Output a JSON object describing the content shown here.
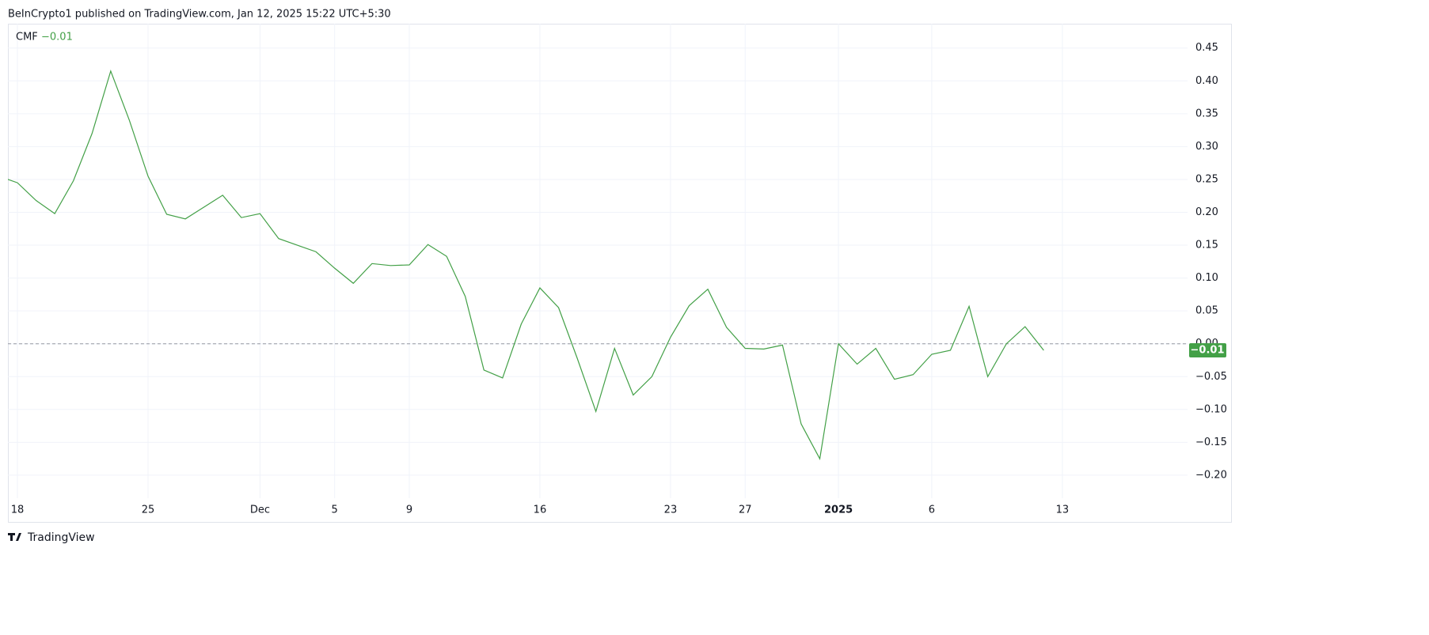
{
  "header": "BeInCrypto1 published on TradingView.com, Jan 12, 2025 15:22 UTC+5:30",
  "footer": "TradingView",
  "chart_data": {
    "type": "line",
    "title": "CMF",
    "last_label": "−0.01",
    "categories": [
      null,
      "18",
      null,
      null,
      null,
      null,
      null,
      null,
      "25",
      null,
      null,
      null,
      null,
      null,
      "Dec",
      null,
      null,
      null,
      "5",
      null,
      null,
      null,
      "9",
      null,
      null,
      null,
      null,
      null,
      null,
      "16",
      null,
      null,
      null,
      null,
      null,
      null,
      "23",
      null,
      null,
      null,
      "27",
      null,
      null,
      null,
      null,
      "2025",
      null,
      null,
      null,
      null,
      "6",
      null,
      null,
      null,
      null,
      null,
      null,
      "13"
    ],
    "series": [
      {
        "name": "CMF",
        "color": "#43a047",
        "values": [
          0.255,
          0.245,
          0.218,
          0.198,
          0.248,
          0.32,
          0.415,
          0.34,
          0.255,
          0.197,
          0.19,
          0.208,
          0.226,
          0.192,
          0.198,
          0.16,
          0.15,
          0.14,
          0.115,
          0.092,
          0.122,
          0.119,
          0.12,
          0.151,
          0.133,
          0.072,
          -0.04,
          -0.052,
          0.03,
          0.085,
          0.055,
          -0.022,
          -0.103,
          -0.007,
          -0.078,
          -0.05,
          0.01,
          0.058,
          0.083,
          0.025,
          -0.007,
          -0.008,
          -0.002,
          -0.122,
          -0.175,
          0.0,
          -0.031,
          -0.007,
          -0.054,
          -0.047,
          -0.016,
          -0.01,
          0.057,
          -0.05,
          0.0,
          0.026,
          -0.01,
          null
        ]
      }
    ],
    "ylim": [
      -0.235,
      0.487
    ],
    "yticks": [
      0.45,
      {
        "value": 0.4,
        "label": "0.40"
      },
      0.35,
      {
        "value": 0.3,
        "label": "0.30"
      },
      0.25,
      {
        "value": 0.2,
        "label": "0.20"
      },
      0.15,
      {
        "value": 0.1,
        "label": "0.10"
      },
      0.05,
      {
        "value": 0,
        "label": "0.00"
      },
      {
        "value": -0.05,
        "label": "−0.05"
      },
      {
        "value": -0.1,
        "label": "−0.10"
      },
      {
        "value": -0.15,
        "label": "−0.15"
      },
      {
        "value": -0.2,
        "label": "−0.20"
      }
    ],
    "hline": 0,
    "grid": true
  }
}
